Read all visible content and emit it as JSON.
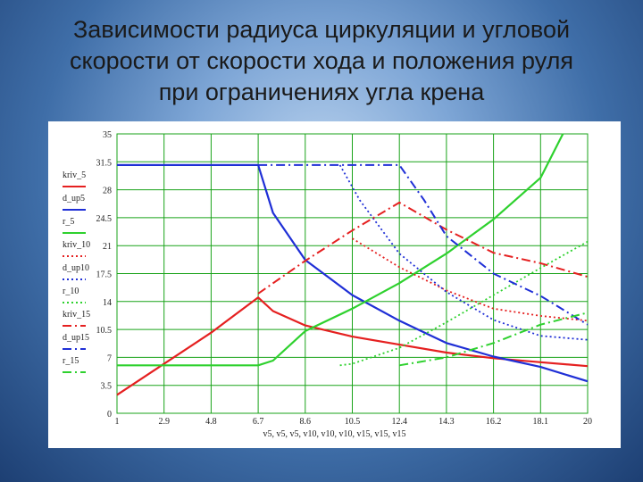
{
  "slide": {
    "title_lines": [
      "Зависимости радиуса циркуляции и угловой",
      "скорости от скорости хода и положения руля",
      "при ограничениях угла крена"
    ]
  },
  "chart_data": {
    "type": "line",
    "title": "",
    "xlabel": "v5, v5, v5, v10, v10, v10, v15, v15, v15",
    "ylabel": "",
    "xlim": [
      1,
      20
    ],
    "ylim": [
      0,
      35
    ],
    "x_ticks": [
      "1",
      "2.9",
      "4.8",
      "6.7",
      "8.6",
      "10.5",
      "12.4",
      "14.3",
      "16.2",
      "18.1",
      "20"
    ],
    "y_ticks": [
      "0",
      "3.5",
      "7",
      "10.5",
      "14",
      "17.5",
      "21",
      "24.5",
      "28",
      "31.5",
      "35"
    ],
    "grid": true,
    "legend_position": "left",
    "legend": [
      {
        "label": "kriv_5",
        "color": "#e52020",
        "dash": "solid"
      },
      {
        "label": "d_up5",
        "color": "#1f2fd6",
        "dash": "solid"
      },
      {
        "label": "r_5",
        "color": "#2ed12e",
        "dash": "solid"
      },
      {
        "label": "kriv_10",
        "color": "#e52020",
        "dash": "dot"
      },
      {
        "label": "d_up10",
        "color": "#1f2fd6",
        "dash": "dot"
      },
      {
        "label": "r_10",
        "color": "#2ed12e",
        "dash": "dot"
      },
      {
        "label": "kriv_15",
        "color": "#e52020",
        "dash": "dashdot"
      },
      {
        "label": "d_up15",
        "color": "#1f2fd6",
        "dash": "dashdot"
      },
      {
        "label": "r_15",
        "color": "#2ed12e",
        "dash": "dashdot"
      }
    ],
    "series": [
      {
        "name": "kriv_5",
        "color": "#e52020",
        "dash": "solid",
        "width": 2.2,
        "points": [
          [
            1,
            2.3
          ],
          [
            2.9,
            6.2
          ],
          [
            4.8,
            10.1
          ],
          [
            6.7,
            14.5
          ],
          [
            7.3,
            12.8
          ],
          [
            8.6,
            11.0
          ],
          [
            10.5,
            9.6
          ],
          [
            12.4,
            8.6
          ],
          [
            14.3,
            7.6
          ],
          [
            16.2,
            6.9
          ],
          [
            18.1,
            6.4
          ],
          [
            20,
            5.9
          ]
        ]
      },
      {
        "name": "d_up5",
        "color": "#1f2fd6",
        "dash": "solid",
        "width": 2.2,
        "points": [
          [
            1,
            31.1
          ],
          [
            6.7,
            31.1
          ],
          [
            7.3,
            25.1
          ],
          [
            8.6,
            19.2
          ],
          [
            10.5,
            14.8
          ],
          [
            12.4,
            11.6
          ],
          [
            14.3,
            8.8
          ],
          [
            16.2,
            7.1
          ],
          [
            18.1,
            5.8
          ],
          [
            20,
            4.0
          ]
        ]
      },
      {
        "name": "r_5",
        "color": "#2ed12e",
        "dash": "solid",
        "width": 2.2,
        "points": [
          [
            1,
            6.0
          ],
          [
            6.7,
            6.0
          ],
          [
            7.3,
            6.6
          ],
          [
            8.6,
            10.3
          ],
          [
            10.5,
            13.1
          ],
          [
            12.4,
            16.3
          ],
          [
            14.3,
            20.0
          ],
          [
            16.2,
            24.3
          ],
          [
            18.1,
            29.5
          ],
          [
            19.0,
            35.0
          ]
        ]
      },
      {
        "name": "kriv_10",
        "color": "#e52020",
        "dash": "dot",
        "width": 1.8,
        "points": [
          [
            10.5,
            21.9
          ],
          [
            12.4,
            18.3
          ],
          [
            14.3,
            15.4
          ],
          [
            16.2,
            13.1
          ],
          [
            18.1,
            12.2
          ],
          [
            20,
            11.6
          ]
        ]
      },
      {
        "name": "d_up10",
        "color": "#1f2fd6",
        "dash": "dot",
        "width": 1.8,
        "points": [
          [
            10.0,
            31.1
          ],
          [
            10.8,
            26.7
          ],
          [
            12.4,
            20.0
          ],
          [
            14.3,
            15.2
          ],
          [
            16.2,
            11.7
          ],
          [
            18.1,
            9.7
          ],
          [
            20,
            9.2
          ]
        ]
      },
      {
        "name": "r_10",
        "color": "#2ed12e",
        "dash": "dot",
        "width": 1.8,
        "points": [
          [
            10.0,
            6.0
          ],
          [
            10.5,
            6.2
          ],
          [
            12.4,
            8.2
          ],
          [
            14.3,
            11.4
          ],
          [
            16.2,
            14.8
          ],
          [
            18.1,
            18.2
          ],
          [
            20,
            21.5
          ]
        ]
      },
      {
        "name": "kriv_15",
        "color": "#e52020",
        "dash": "dashdot",
        "width": 2.0,
        "points": [
          [
            6.7,
            15.0
          ],
          [
            8.6,
            19.1
          ],
          [
            10.5,
            22.9
          ],
          [
            12.4,
            26.4
          ],
          [
            14.3,
            23.0
          ],
          [
            16.2,
            20.1
          ],
          [
            18.1,
            18.8
          ],
          [
            20,
            17.1
          ]
        ]
      },
      {
        "name": "d_up15",
        "color": "#1f2fd6",
        "dash": "dashdot",
        "width": 2.0,
        "points": [
          [
            6.7,
            31.1
          ],
          [
            12.4,
            31.1
          ],
          [
            13.4,
            26.7
          ],
          [
            14.3,
            22.2
          ],
          [
            16.2,
            17.5
          ],
          [
            18.1,
            14.7
          ],
          [
            20,
            11.1
          ]
        ]
      },
      {
        "name": "r_15",
        "color": "#2ed12e",
        "dash": "dashdot",
        "width": 2.0,
        "points": [
          [
            12.4,
            6.0
          ],
          [
            14.3,
            7.0
          ],
          [
            16.2,
            8.8
          ],
          [
            18.1,
            11.1
          ],
          [
            20,
            12.6
          ]
        ]
      }
    ]
  }
}
